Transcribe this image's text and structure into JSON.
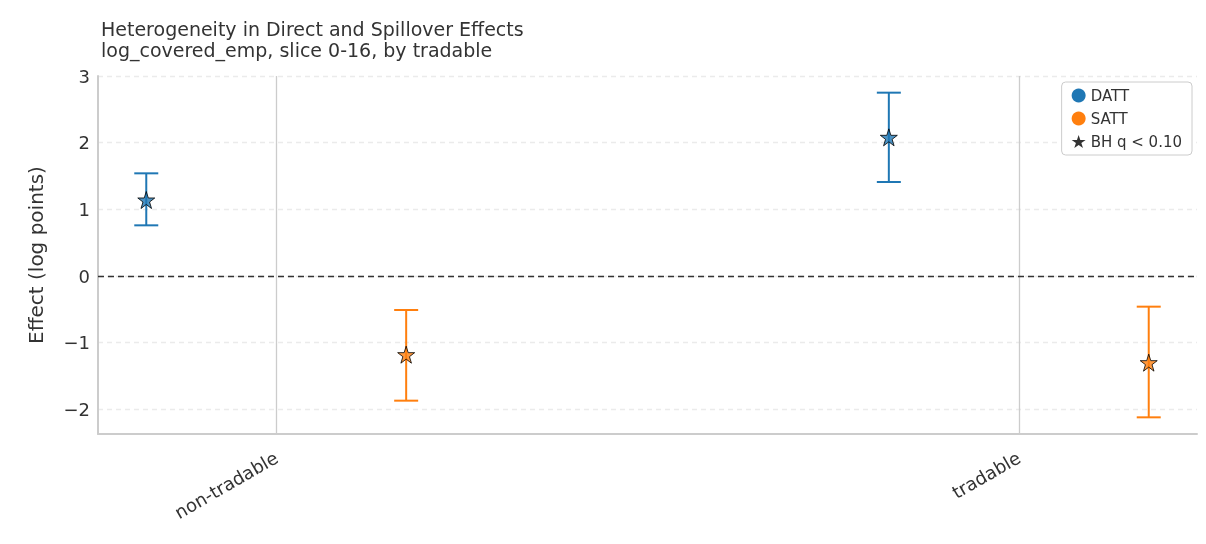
{
  "chart_data": {
    "type": "scatter",
    "title": "Heterogeneity in Direct and Spillover Effects",
    "subtitle": "log_covered_emp, slice 0-16, by tradable",
    "ylabel": "Effect (log points)",
    "categories": [
      "non-tradable",
      "tradable"
    ],
    "ylim": [
      -2.37,
      3
    ],
    "yticks": [
      -2,
      -1,
      0,
      1,
      2,
      3
    ],
    "grid": true,
    "legend": "top right",
    "ref_lines": [
      {
        "axis": "y",
        "value": 0,
        "label": null,
        "color": "#333333",
        "line_style": "dashed"
      }
    ],
    "series": [
      {
        "name": "DATT",
        "color": "#1f77b4",
        "marker": "star",
        "values": [
          1.14,
          2.08
        ],
        "errors": [
          [
            0.76,
            1.54
          ],
          [
            1.41,
            2.75
          ]
        ]
      },
      {
        "name": "SATT",
        "color": "#ff7f0e",
        "marker": "star",
        "values": [
          -1.18,
          -1.3
        ],
        "errors": [
          [
            -1.87,
            -0.51
          ],
          [
            -2.12,
            -0.46
          ]
        ]
      },
      {
        "name": "BH q < 0.10",
        "color": "#000000",
        "marker": "star",
        "values": [
          null,
          null
        ]
      }
    ]
  }
}
